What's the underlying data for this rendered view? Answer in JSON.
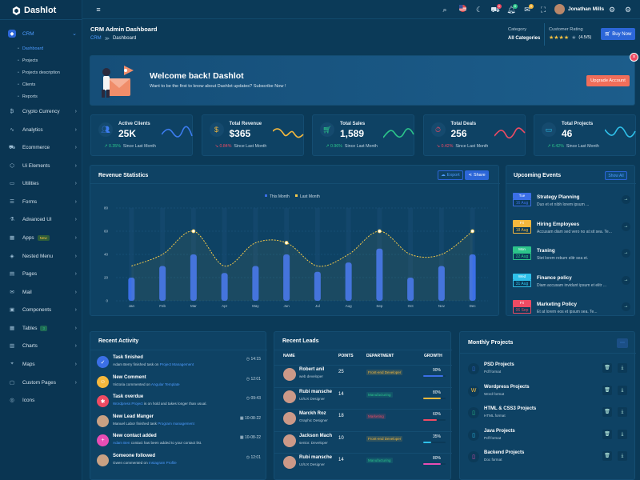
{
  "app": {
    "name": "Dashlot"
  },
  "sidebar": {
    "active": "CRM",
    "subitems": [
      "Dashboard",
      "Projects",
      "Projects description",
      "Clients",
      "Reports"
    ],
    "items": [
      {
        "label": "Crypto Currency",
        "icon": "bitcoin-icon"
      },
      {
        "label": "Analytics",
        "icon": "pulse-icon"
      },
      {
        "label": "Ecommerce",
        "icon": "cart-icon"
      },
      {
        "label": "Ui Elements",
        "icon": "cube-icon"
      },
      {
        "label": "Utilities",
        "icon": "briefcase-icon"
      },
      {
        "label": "Forms",
        "icon": "form-icon"
      },
      {
        "label": "Advanced UI",
        "icon": "flask-icon"
      },
      {
        "label": "Apps",
        "icon": "grid-icon",
        "badge": "New"
      },
      {
        "label": "Nested Menu",
        "icon": "layers-icon"
      },
      {
        "label": "Pages",
        "icon": "pages-icon"
      },
      {
        "label": "Mail",
        "icon": "mail-icon"
      },
      {
        "label": "Components",
        "icon": "box-icon"
      },
      {
        "label": "Tables",
        "icon": "table-icon",
        "badge": "3"
      },
      {
        "label": "Charts",
        "icon": "chart-icon"
      },
      {
        "label": "Maps",
        "icon": "map-pin-icon"
      },
      {
        "label": "Custom Pages",
        "icon": "page-icon"
      },
      {
        "label": "Icons",
        "icon": "icons-icon"
      }
    ]
  },
  "header": {
    "user": "Jonathan Mills",
    "badges": {
      "cart": "6",
      "bell": "8",
      "chat": "5"
    }
  },
  "page": {
    "title": "CRM Admin Dashboard",
    "crumb1": "CRM",
    "crumb2": "Dashboard",
    "category_label": "Category",
    "category_value": "All Categories",
    "rating_label": "Customer Rating",
    "rating_value": "(4.5/5)",
    "buy": "Buy Now"
  },
  "welcome": {
    "title": "Welcome back! Dashlot",
    "text": "Want to be the first to know about Dashlot updates? Subscribe Now !",
    "button": "Upgrade Account"
  },
  "stats": [
    {
      "title": "Active Clients",
      "value": "25K",
      "change": "0.35%",
      "since": "Since Last Month",
      "up": true,
      "icon": "users-icon",
      "color": "#3c7cf0",
      "line": "#3c7cf0"
    },
    {
      "title": "Total Revenue",
      "value": "$365",
      "change": "0.84%",
      "since": "Since Last Month",
      "up": false,
      "icon": "dollar-icon",
      "color": "#f5b83d",
      "line": "#f5b83d"
    },
    {
      "title": "Total Sales",
      "value": "1,589",
      "change": "0.96%",
      "since": "Since Last Month",
      "up": true,
      "icon": "cart-icon",
      "color": "#2cc48a",
      "line": "#2cc48a"
    },
    {
      "title": "Total Deals",
      "value": "256",
      "change": "0.42%",
      "since": "Since Last Month",
      "up": false,
      "icon": "timer-icon",
      "color": "#ef4b63",
      "line": "#ef4b63"
    },
    {
      "title": "Total Projects",
      "value": "46",
      "change": "6.42%",
      "since": "Since Last Month",
      "up": true,
      "icon": "folder-icon",
      "color": "#2fc0ea",
      "line": "#2fc0ea"
    }
  ],
  "revenue": {
    "title": "Revenue Statistics",
    "export": "Export",
    "share": "Share"
  },
  "chart_data": {
    "type": "bar",
    "categories": [
      "Jan",
      "Feb",
      "Mar",
      "Apr",
      "May",
      "Jun",
      "Jul",
      "Aug",
      "Sep",
      "Oct",
      "Nov",
      "Dec"
    ],
    "series": [
      {
        "name": "This Month",
        "type": "bar",
        "values": [
          20,
          30,
          40,
          24,
          30,
          40,
          25,
          33,
          45,
          20,
          30,
          40
        ]
      },
      {
        "name": "Last Month",
        "type": "line",
        "values": [
          30,
          40,
          60,
          30,
          50,
          50,
          30,
          40,
          60,
          40,
          40,
          60
        ]
      }
    ],
    "yticks": [
      0,
      20,
      40,
      60,
      80
    ],
    "ylim": [
      0,
      80
    ],
    "legend": "top-center",
    "colors": {
      "bar": "#3b6fe6",
      "line": "#f4c94a"
    }
  },
  "events": {
    "title": "Upcoming Events",
    "show_all": "Show All",
    "items": [
      {
        "day": "Tue",
        "date": "16 Aug",
        "title": "Strategy Planning",
        "text": "Duo et et nibh lorem ipsum ...",
        "color": "#3b6fe6"
      },
      {
        "day": "Fri",
        "date": "18 Aug",
        "title": "Hiring Employees",
        "text": "Accusam diam sed vero no at sit sea. Te...",
        "color": "#f5b83d"
      },
      {
        "day": "Mon",
        "date": "22 Aug",
        "title": "Traning",
        "text": "Stet lorem rebum elitr sea et.",
        "color": "#2cc48a"
      },
      {
        "day": "Wed",
        "date": "31 Aug",
        "title": "Finance policy",
        "text": "Diam accusam invidunt ipsum et elitr ...",
        "color": "#2fc0ea"
      },
      {
        "day": "Fri",
        "date": "06 Sep",
        "title": "Marketing Policy",
        "text": "Et at lorem eos et ipsum sea. Te...",
        "color": "#ef4b63"
      }
    ]
  },
  "activity": {
    "title": "Recent Activity",
    "items": [
      {
        "name": "Task finished",
        "pre": "Adam Berry finished task on ",
        "link": "Project Management",
        "post": "",
        "time": "14:15",
        "icon": "check-icon",
        "color": "#3b6fe6",
        "clock": true
      },
      {
        "name": "New Comment",
        "pre": "Victoria commented on ",
        "link": "Angular Template",
        "post": "",
        "time": "12:01",
        "icon": "chat-icon",
        "color": "#f5b83d",
        "clock": true
      },
      {
        "name": "Task overdue",
        "pre": "",
        "link": "Wordpress Project",
        "post": " is on hold and takes longer than usual.",
        "time": "09:43",
        "icon": "bug-icon",
        "color": "#ef4b63",
        "clock": true
      },
      {
        "name": "New Lead Manger",
        "pre": "Manuel Labor finished task ",
        "link": "Program management",
        "post": "",
        "time": "10-08-22",
        "icon": "avatar",
        "color": "#c9a183",
        "clock": false
      },
      {
        "name": "New contact added",
        "pre": "",
        "link": "Adam Ben",
        "post": " contact has been added to your contact list.",
        "time": "10-08-22",
        "icon": "user-plus-icon",
        "color": "#e84db4",
        "clock": false
      },
      {
        "name": "Someone followed",
        "pre": "Gwen commented on ",
        "link": "Instagram Profile",
        "post": "",
        "time": "12:01",
        "icon": "avatar",
        "color": "#c9a183",
        "clock": true
      }
    ]
  },
  "leads": {
    "title": "Recent Leads",
    "cols": [
      "NAME",
      "POINTS",
      "DEPARTMENT",
      "GROWTH"
    ],
    "rows": [
      {
        "name": "Robert anil",
        "role": "web developer",
        "points": "25",
        "dept": "Front-end Developer",
        "dcolor": "#f5b83d",
        "growth": "90%",
        "pct": 0.9,
        "bcolor": "#3b6fe6"
      },
      {
        "name": "Rubi mansche",
        "role": "UI/UX Designer",
        "points": "14",
        "dept": "Manufacturing",
        "dcolor": "#2cc48a",
        "growth": "80%",
        "pct": 0.8,
        "bcolor": "#f5b83d"
      },
      {
        "name": "Marckh Roz",
        "role": "Graphic Designer",
        "points": "18",
        "dept": "Marketing",
        "dcolor": "#ef4b63",
        "growth": "60%",
        "pct": 0.6,
        "bcolor": "#ef4b63"
      },
      {
        "name": "Jackson Mach",
        "role": "senior. Developer",
        "points": "10",
        "dept": "Front-end Developer",
        "dcolor": "#f5b83d",
        "growth": "35%",
        "pct": 0.35,
        "bcolor": "#2fc0ea"
      },
      {
        "name": "Rubi mansche",
        "role": "UI/UX Designer",
        "points": "14",
        "dept": "Manufacturing",
        "dcolor": "#2cc48a",
        "growth": "80%",
        "pct": 0.8,
        "bcolor": "#e84db4"
      }
    ]
  },
  "projects": {
    "title": "Monthly Projects",
    "items": [
      {
        "name": "PSD Projects",
        "type": "Pdf format",
        "color": "#3b6fe6",
        "icon": "file-icon"
      },
      {
        "name": "Wordpress Projects",
        "type": "Word format",
        "color": "#f5b83d",
        "icon": "wordpress-icon"
      },
      {
        "name": "HTML & CSS3 Projects",
        "type": "HTML format",
        "color": "#2cc48a",
        "icon": "file-icon"
      },
      {
        "name": "Java Projects",
        "type": "Pdf format",
        "color": "#2fc0ea",
        "icon": "file-icon"
      },
      {
        "name": "Backend Projects",
        "type": "Doc format",
        "color": "#e84db4",
        "icon": "file-icon"
      }
    ]
  }
}
